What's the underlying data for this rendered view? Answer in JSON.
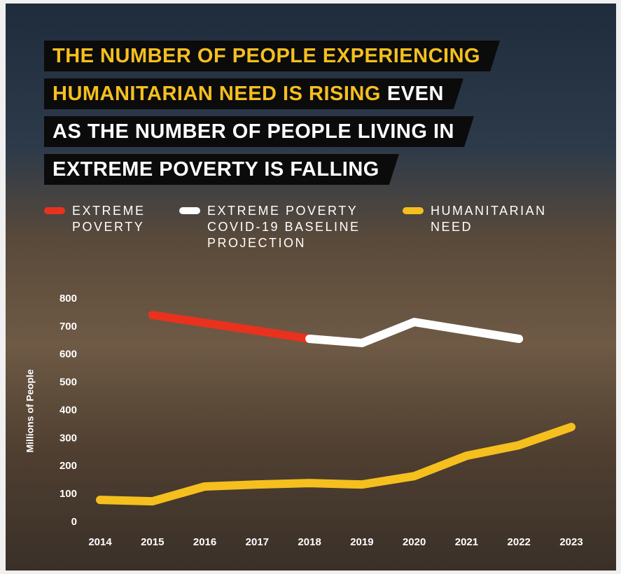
{
  "chart_data": {
    "type": "line",
    "title_lines": [
      [
        {
          "text": "THE NUMBER OF PEOPLE EXPERIENCING",
          "color": "#f5bf1e"
        }
      ],
      [
        {
          "text": "HUMANITARIAN NEED IS RISING",
          "color": "#f5bf1e"
        },
        {
          "text": "EVEN",
          "color": "#ffffff"
        }
      ],
      [
        {
          "text": "AS THE NUMBER OF PEOPLE LIVING IN",
          "color": "#ffffff"
        }
      ],
      [
        {
          "text": "EXTREME POVERTY IS FALLING",
          "color": "#ffffff"
        }
      ]
    ],
    "y_label": "Millions of People",
    "x": [
      2014,
      2015,
      2016,
      2017,
      2018,
      2019,
      2020,
      2021,
      2022,
      2023
    ],
    "xlim": [
      2014,
      2023
    ],
    "ylim": [
      0,
      800
    ],
    "yticks": [
      0,
      100,
      200,
      300,
      400,
      500,
      600,
      700,
      800
    ],
    "grid": false,
    "series": [
      {
        "name": "EXTREME POVERTY",
        "color": "#e8321e",
        "values": [
          null,
          742,
          714,
          686,
          657,
          null,
          null,
          null,
          null,
          null
        ]
      },
      {
        "name": "EXTREME POVERTY COVID-19 BASELINE PROJECTION",
        "color": "#ffffff",
        "values": [
          null,
          null,
          null,
          null,
          657,
          642,
          717,
          687,
          657,
          null
        ]
      },
      {
        "name": "HUMANITARIAN NEED",
        "color": "#f5bf1e",
        "values": [
          80,
          75,
          128,
          135,
          140,
          135,
          165,
          238,
          276,
          341
        ]
      }
    ]
  }
}
